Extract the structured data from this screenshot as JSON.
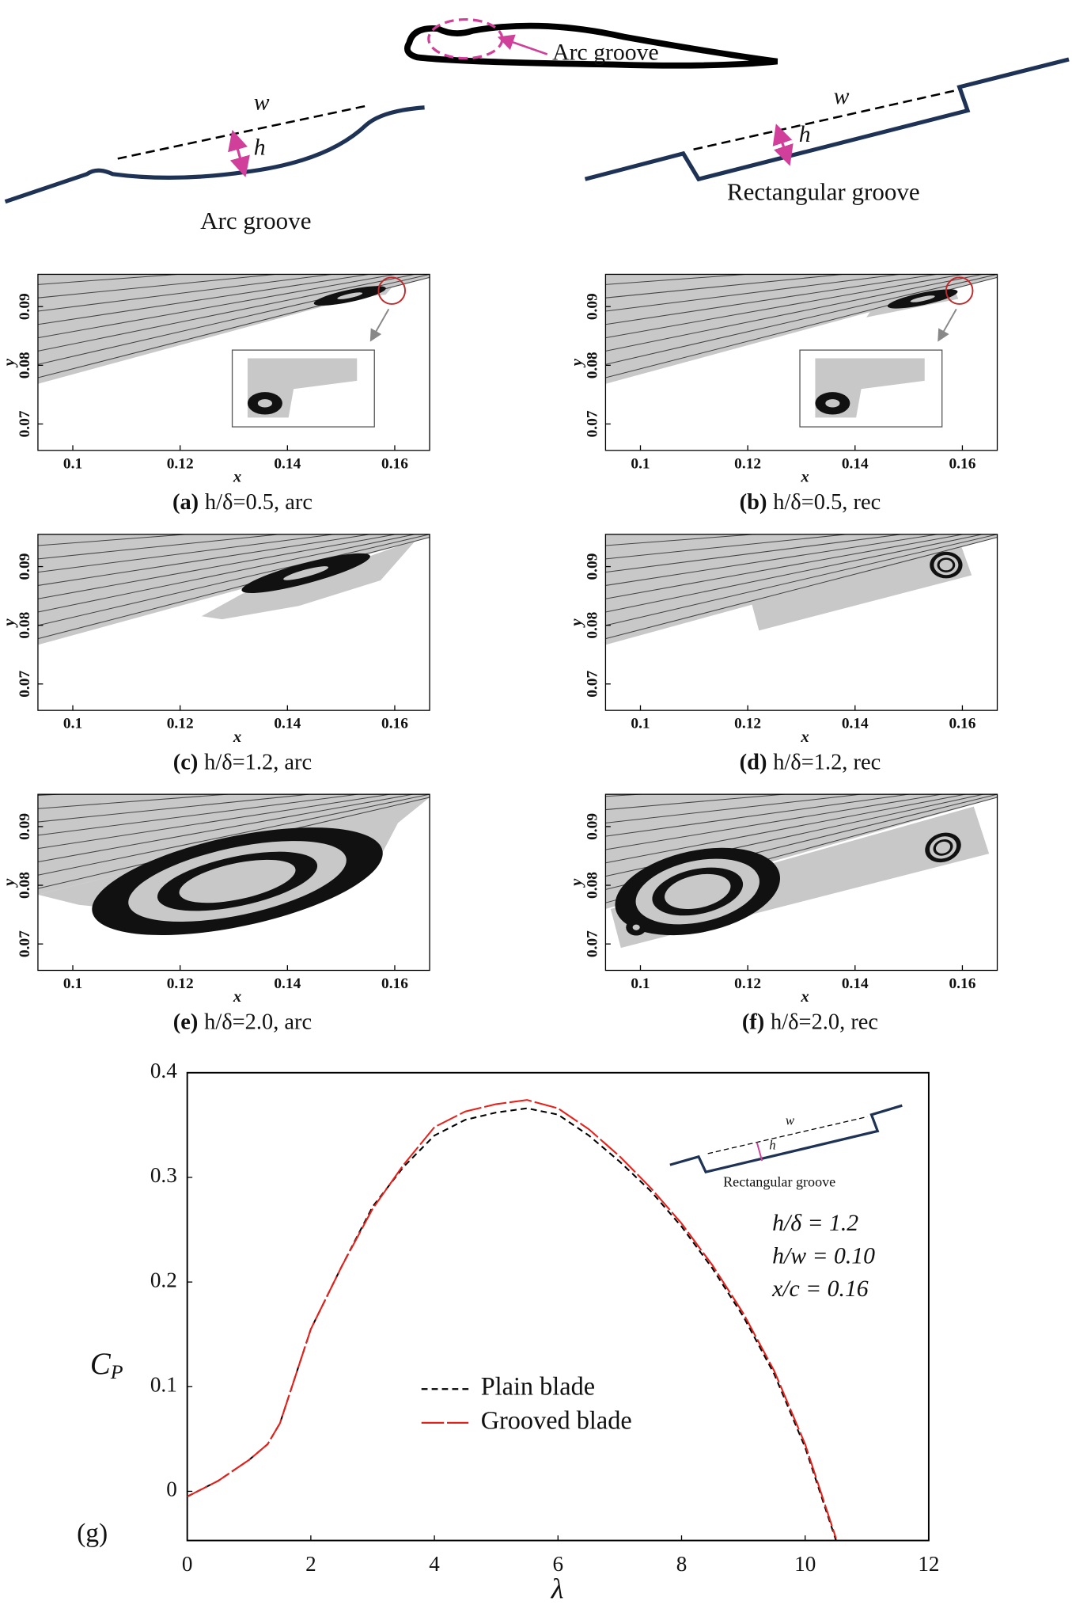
{
  "diagram": {
    "callout": "Arc groove",
    "arc": {
      "w": "w",
      "h": "h",
      "label": "Arc groove"
    },
    "rect": {
      "w": "w",
      "h": "h",
      "label": "Rectangular groove"
    }
  },
  "chart_data": [
    {
      "type": "streamline",
      "caption_label": "(a)",
      "caption": "h/δ=0.5, arc",
      "x_label": "x",
      "y_label": "y",
      "xlim": [
        0.0935,
        0.1665
      ],
      "ylim": [
        0.0655,
        0.0955
      ],
      "xticks": [
        0.1,
        0.12,
        0.14,
        0.16
      ],
      "yticks": [
        0.07,
        0.08,
        0.09
      ]
    },
    {
      "type": "streamline",
      "caption_label": "(b)",
      "caption": "h/δ=0.5, rec",
      "x_label": "x",
      "y_label": "y",
      "xlim": [
        0.0935,
        0.1665
      ],
      "ylim": [
        0.0655,
        0.0955
      ],
      "xticks": [
        0.1,
        0.12,
        0.14,
        0.16
      ],
      "yticks": [
        0.07,
        0.08,
        0.09
      ]
    },
    {
      "type": "streamline",
      "caption_label": "(c)",
      "caption": "h/δ=1.2, arc",
      "x_label": "x",
      "y_label": "y",
      "xlim": [
        0.0935,
        0.1665
      ],
      "ylim": [
        0.0655,
        0.0955
      ],
      "xticks": [
        0.1,
        0.12,
        0.14,
        0.16
      ],
      "yticks": [
        0.07,
        0.08,
        0.09
      ]
    },
    {
      "type": "streamline",
      "caption_label": "(d)",
      "caption": "h/δ=1.2, rec",
      "x_label": "x",
      "y_label": "y",
      "xlim": [
        0.0935,
        0.1665
      ],
      "ylim": [
        0.0655,
        0.0955
      ],
      "xticks": [
        0.1,
        0.12,
        0.14,
        0.16
      ],
      "yticks": [
        0.07,
        0.08,
        0.09
      ]
    },
    {
      "type": "streamline",
      "caption_label": "(e)",
      "caption": "h/δ=2.0, arc",
      "x_label": "x",
      "y_label": "y",
      "xlim": [
        0.0935,
        0.1665
      ],
      "ylim": [
        0.0655,
        0.0955
      ],
      "xticks": [
        0.1,
        0.12,
        0.14,
        0.16
      ],
      "yticks": [
        0.07,
        0.08,
        0.09
      ]
    },
    {
      "type": "streamline",
      "caption_label": "(f)",
      "caption": "h/δ=2.0, rec",
      "x_label": "x",
      "y_label": "y",
      "xlim": [
        0.0935,
        0.1665
      ],
      "ylim": [
        0.0655,
        0.0955
      ],
      "xticks": [
        0.1,
        0.12,
        0.14,
        0.16
      ],
      "yticks": [
        0.07,
        0.08,
        0.09
      ]
    },
    {
      "type": "line",
      "panel_label": "(g)",
      "x_label": "λ",
      "y_label": "C",
      "y_label_sub": "P",
      "xlim": [
        0,
        12
      ],
      "ylim": [
        -0.047,
        0.4
      ],
      "xticks": [
        0,
        2,
        4,
        6,
        8,
        10,
        12
      ],
      "yticks": [
        0,
        0.1,
        0.2,
        0.3,
        0.4
      ],
      "x": [
        0,
        0.5,
        1,
        1.3,
        1.5,
        2,
        2.5,
        3,
        3.5,
        4,
        4.5,
        5,
        5.5,
        6,
        6.5,
        7,
        7.5,
        8,
        8.5,
        9,
        9.5,
        10,
        10.5
      ],
      "series": [
        {
          "name": "Plain blade",
          "color": "#000000",
          "dash": "dashed",
          "values": [
            -0.005,
            0.01,
            0.03,
            0.045,
            0.065,
            0.155,
            0.215,
            0.272,
            0.31,
            0.34,
            0.355,
            0.362,
            0.366,
            0.36,
            0.34,
            0.315,
            0.287,
            0.253,
            0.213,
            0.167,
            0.112,
            0.042,
            -0.047
          ]
        },
        {
          "name": "Grooved blade",
          "color": "#e8201a",
          "dash": "long-dash",
          "values": [
            -0.005,
            0.01,
            0.03,
            0.045,
            0.065,
            0.155,
            0.215,
            0.27,
            0.312,
            0.348,
            0.363,
            0.37,
            0.374,
            0.366,
            0.346,
            0.32,
            0.29,
            0.256,
            0.216,
            0.17,
            0.115,
            0.045,
            -0.045
          ]
        }
      ],
      "annotations": [
        "h/δ = 1.2",
        "h/w = 0.10",
        "x/c = 0.16"
      ],
      "inset": {
        "w": "w",
        "h": "h",
        "label": "Rectangular groove"
      }
    }
  ]
}
